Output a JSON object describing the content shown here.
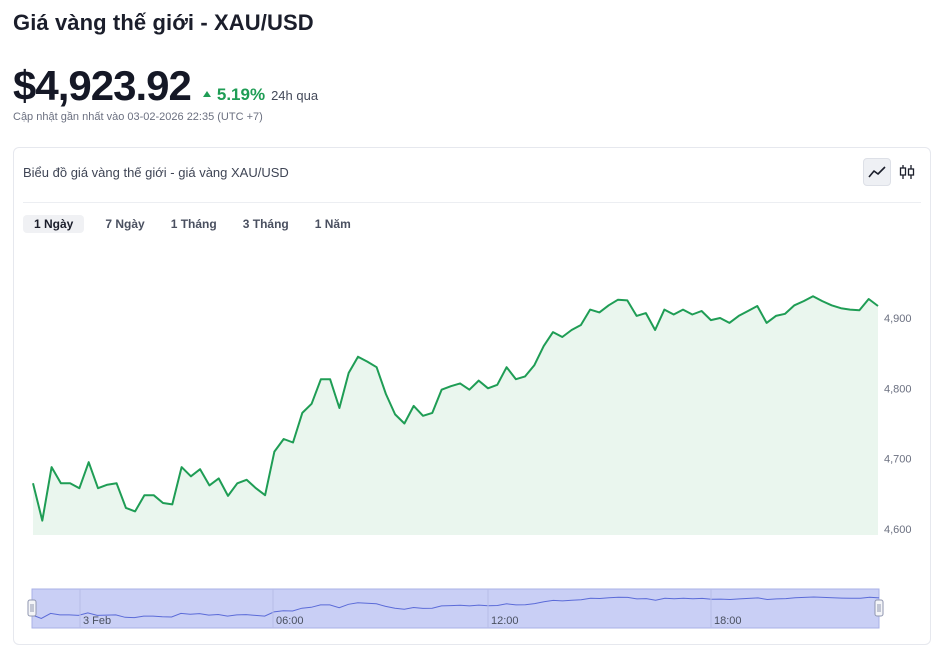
{
  "header": {
    "title": "Giá vàng thế giới - XAU/USD",
    "price": "$4,923.92",
    "change_pct": "5.19%",
    "change_period": "24h qua",
    "updated": "Cập nhật gần nhất vào 03-02-2026 22:35 (UTC +7)"
  },
  "card": {
    "title": "Biểu đồ giá vàng thế giới - giá vàng XAU/USD",
    "chart_types": [
      {
        "icon": "line-chart-icon",
        "active": true
      },
      {
        "icon": "candlestick-icon",
        "active": false
      }
    ],
    "tabs": [
      {
        "label": "1 Ngày",
        "active": true
      },
      {
        "label": "7 Ngày",
        "active": false
      },
      {
        "label": "1 Tháng",
        "active": false
      },
      {
        "label": "3 Tháng",
        "active": false
      },
      {
        "label": "1 Năm",
        "active": false
      }
    ]
  },
  "colors": {
    "line": "#1f9d55",
    "area": "#eaf6ee",
    "navigator_fill": "#c9cff5",
    "navigator_line": "#5b6bd8"
  },
  "chart_data": {
    "type": "area",
    "title": "",
    "xlabel": "",
    "ylabel": "",
    "ylim": [
      4590,
      4960
    ],
    "y_ticks": [
      "4,600",
      "4,700",
      "4,800",
      "4,900"
    ],
    "y_tick_values": [
      4600,
      4700,
      4800,
      4900
    ],
    "y_axis_position": "right",
    "navigator_labels": [
      "3 Feb",
      "06:00",
      "12:00",
      "18:00"
    ],
    "series": [
      {
        "values": [
          4665,
          4612,
          4688,
          4665,
          4665,
          4658,
          4695,
          4658,
          4663,
          4665,
          4630,
          4625,
          4648,
          4648,
          4637,
          4635,
          4688,
          4675,
          4685,
          4662,
          4672,
          4647,
          4665,
          4670,
          4658,
          4648,
          4710,
          4728,
          4723,
          4765,
          4778,
          4813,
          4813,
          4772,
          4822,
          4845,
          4838,
          4830,
          4792,
          4763,
          4750,
          4775,
          4761,
          4765,
          4798,
          4803,
          4807,
          4798,
          4811,
          4800,
          4805,
          4830,
          4813,
          4817,
          4833,
          4860,
          4880,
          4873,
          4883,
          4890,
          4912,
          4908,
          4918,
          4926,
          4925,
          4903,
          4907,
          4883,
          4912,
          4905,
          4912,
          4905,
          4910,
          4897,
          4900,
          4893,
          4903,
          4910,
          4917,
          4893,
          4903,
          4906,
          4918,
          4924,
          4931,
          4924,
          4918,
          4914,
          4912,
          4911,
          4927,
          4917
        ]
      }
    ]
  }
}
